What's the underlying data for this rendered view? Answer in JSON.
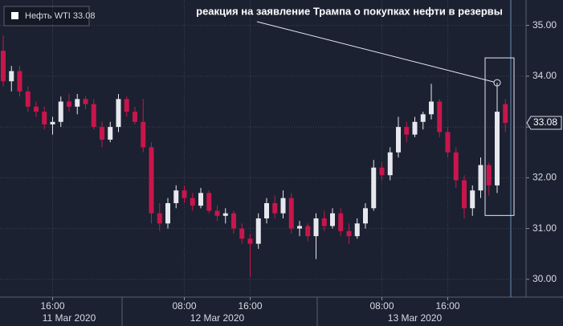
{
  "chart_data": {
    "type": "candlestick",
    "annotation": "реакция на заявление Трампа о покупках нефти в резервы",
    "categories": [
      null,
      null,
      null,
      null,
      null,
      null,
      "16:00",
      null,
      null,
      null,
      null,
      null,
      null,
      null,
      null,
      null,
      null,
      null,
      null,
      null,
      null,
      null,
      "08:00",
      null,
      null,
      null,
      null,
      null,
      null,
      null,
      "16:00",
      null,
      null,
      null,
      null,
      null,
      null,
      null,
      null,
      null,
      null,
      null,
      null,
      null,
      null,
      null,
      "08:00",
      null,
      null,
      null,
      null,
      null,
      null,
      null,
      "16:00",
      null,
      null,
      null,
      null,
      null,
      null,
      null
    ],
    "dates": [
      null,
      null,
      null,
      null,
      null,
      null,
      null,
      null,
      "11 Mar 2020",
      null,
      null,
      null,
      null,
      null,
      null,
      null,
      null,
      null,
      null,
      null,
      null,
      null,
      null,
      null,
      null,
      null,
      "12 Mar 2020",
      null,
      null,
      null,
      null,
      null,
      null,
      null,
      null,
      null,
      null,
      null,
      null,
      null,
      null,
      null,
      null,
      null,
      null,
      null,
      null,
      null,
      null,
      null,
      "13 Mar 2020",
      null,
      null,
      null,
      null,
      null,
      null,
      null,
      null,
      null,
      null,
      null
    ],
    "series": [
      {
        "name": "Нефть WTI 33.08",
        "up_color": "#e6e8ee",
        "down_color": "#c8164c",
        "open": [
          34.5,
          33.9,
          34.1,
          33.7,
          33.4,
          33.3,
          33.05,
          33.1,
          33.5,
          33.4,
          33.55,
          33.45,
          33.0,
          32.75,
          33.0,
          33.55,
          33.3,
          33.1,
          32.6,
          31.3,
          31.1,
          31.5,
          31.75,
          31.6,
          31.45,
          31.7,
          31.35,
          31.25,
          31.3,
          31.0,
          30.8,
          30.7,
          31.2,
          31.5,
          31.3,
          31.6,
          31.0,
          31.05,
          30.85,
          31.2,
          31.05,
          31.3,
          30.95,
          30.85,
          31.1,
          31.4,
          32.2,
          32.05,
          32.5,
          33.0,
          32.85,
          33.1,
          33.25,
          33.5,
          32.9,
          32.5,
          31.95,
          31.4,
          31.75,
          32.25,
          31.85,
          33.45
        ],
        "high": [
          34.8,
          34.2,
          34.2,
          33.8,
          33.5,
          33.4,
          33.2,
          33.6,
          33.65,
          33.65,
          33.6,
          33.55,
          33.1,
          33.1,
          33.65,
          33.6,
          33.4,
          33.55,
          32.7,
          31.5,
          31.6,
          31.85,
          31.85,
          31.7,
          31.8,
          31.75,
          31.45,
          31.4,
          31.35,
          31.1,
          30.9,
          31.3,
          31.6,
          31.65,
          31.75,
          31.7,
          31.15,
          31.1,
          31.3,
          31.35,
          31.4,
          31.4,
          31.1,
          31.2,
          31.5,
          32.35,
          32.3,
          32.6,
          33.2,
          33.1,
          33.2,
          33.3,
          33.85,
          33.55,
          33.0,
          32.6,
          32.05,
          31.85,
          32.4,
          32.3,
          33.87,
          33.55
        ],
        "low": [
          33.8,
          33.7,
          33.6,
          33.3,
          33.2,
          32.95,
          32.85,
          33.0,
          33.3,
          33.25,
          33.35,
          32.95,
          32.6,
          32.7,
          32.9,
          33.2,
          33.05,
          32.5,
          31.1,
          30.95,
          31.0,
          31.4,
          31.5,
          31.35,
          31.4,
          31.3,
          31.15,
          31.1,
          30.9,
          30.7,
          30.05,
          30.6,
          31.1,
          31.2,
          31.2,
          30.9,
          30.85,
          30.75,
          30.4,
          30.95,
          31.0,
          30.85,
          30.7,
          30.8,
          31.0,
          31.35,
          31.95,
          31.95,
          32.4,
          32.7,
          32.8,
          32.95,
          33.15,
          32.8,
          32.4,
          31.8,
          31.2,
          31.25,
          31.6,
          31.65,
          31.7,
          32.9
        ],
        "close": [
          33.9,
          34.1,
          33.7,
          33.4,
          33.3,
          33.05,
          33.1,
          33.5,
          33.4,
          33.55,
          33.45,
          33.0,
          32.75,
          33.0,
          33.55,
          33.3,
          33.1,
          32.6,
          31.3,
          31.1,
          31.5,
          31.75,
          31.6,
          31.45,
          31.7,
          31.35,
          31.25,
          31.3,
          31.0,
          30.8,
          30.7,
          31.2,
          31.5,
          31.3,
          31.6,
          31.0,
          31.05,
          30.85,
          31.2,
          31.05,
          31.3,
          30.95,
          30.85,
          31.1,
          31.4,
          32.2,
          32.05,
          32.5,
          33.0,
          32.85,
          33.1,
          33.25,
          33.5,
          32.9,
          32.5,
          31.95,
          31.4,
          31.75,
          32.25,
          31.85,
          33.3,
          33.08
        ],
        "last_label": "33.08"
      }
    ],
    "ylim": [
      29.65,
      35.5
    ],
    "yticks": [
      {
        "value": 30,
        "label": "30.00"
      },
      {
        "value": 31,
        "label": "31.00"
      },
      {
        "value": 32,
        "label": "32.00"
      },
      {
        "value": 33,
        "label": "33.00"
      },
      {
        "value": 34,
        "label": "34.00"
      },
      {
        "value": 35,
        "label": "35.00"
      }
    ],
    "grid": true
  }
}
